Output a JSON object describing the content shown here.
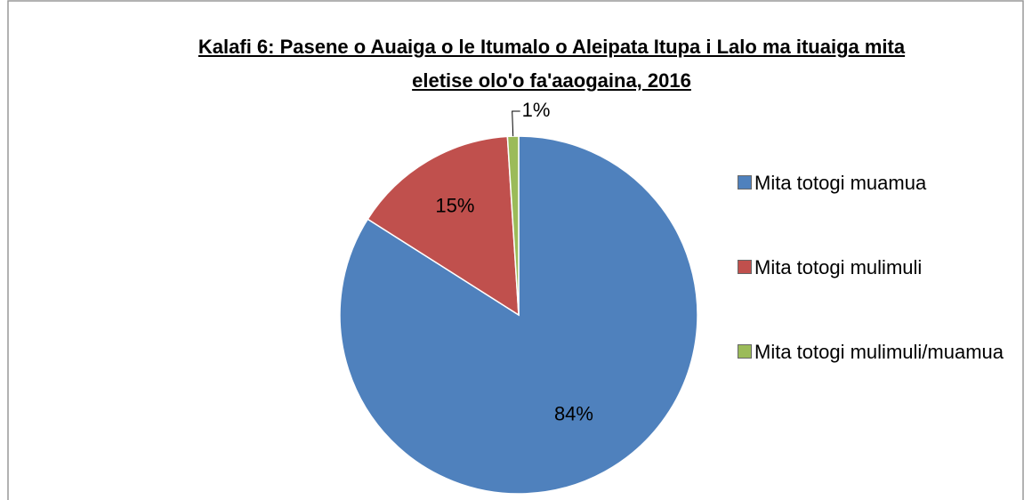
{
  "chart_data": {
    "type": "pie",
    "title": "Kalafi 6: Pasene o Auaiga o le Itumalo o Aleipata Itupa i Lalo ma ituaiga mita eletise olo'o fa'aaogaina, 2016",
    "categories": [
      "Mita totogi muamua",
      "Mita totogi mulimuli",
      "Mita totogi mulimuli/muamua"
    ],
    "values": [
      84,
      15,
      1
    ],
    "value_labels": [
      "84%",
      "15%",
      "1%"
    ],
    "colors": [
      "#4f81bd",
      "#c0504d",
      "#9bbb59"
    ],
    "legend": "right"
  }
}
